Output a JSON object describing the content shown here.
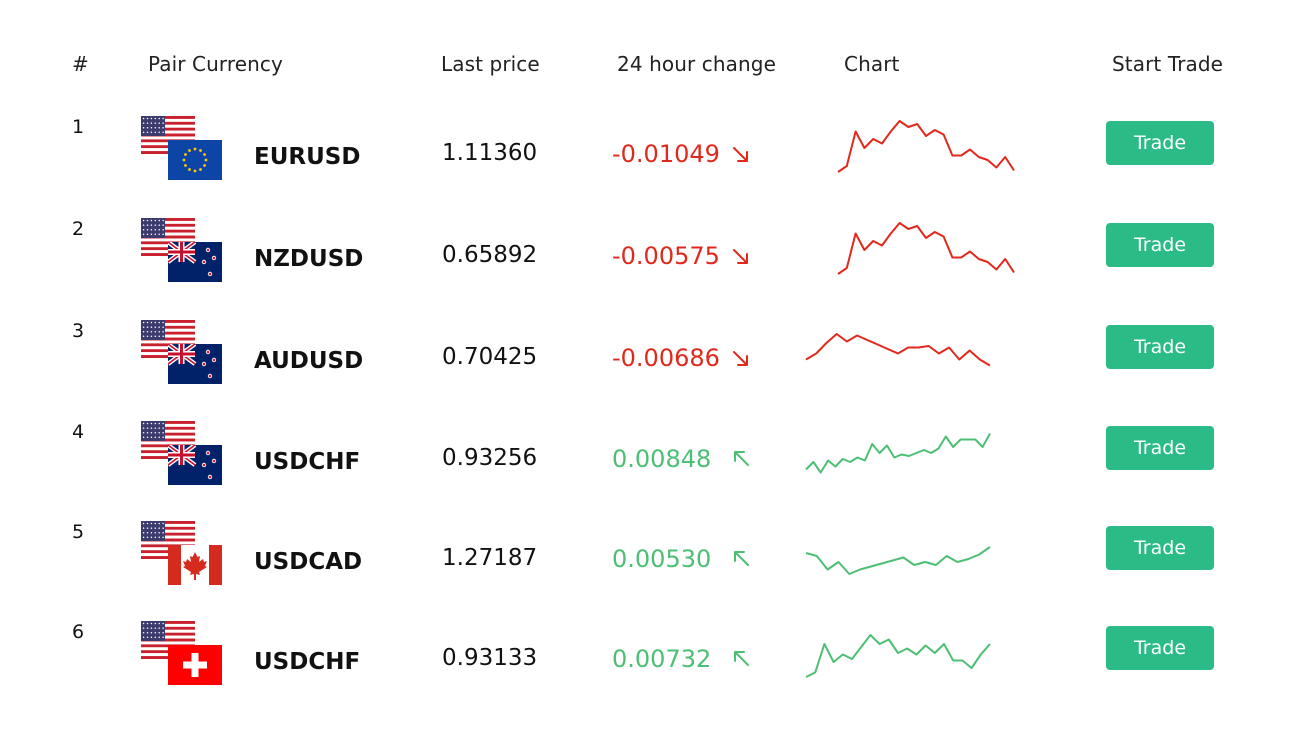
{
  "headers": {
    "num": "#",
    "pair": "Pair Currency",
    "price": "Last price",
    "change": "24 hour change",
    "chart": "Chart",
    "trade": "Start Trade"
  },
  "colors": {
    "down": "#e0291c",
    "up": "#4cbf74",
    "button": "#2bbb87"
  },
  "rows": [
    {
      "num": "1",
      "pair": "EURUSD",
      "price": "1.11360",
      "change": "-0.01049",
      "direction": "down",
      "flag_back": "us-flag",
      "flag_front": "eu-flag",
      "trade_label": "Trade",
      "spark": [
        8,
        16,
        62,
        40,
        52,
        46,
        62,
        76,
        68,
        72,
        56,
        64,
        58,
        30,
        30,
        38,
        28,
        24,
        14,
        28,
        10
      ]
    },
    {
      "num": "2",
      "pair": "NZDUSD",
      "price": "0.65892",
      "change": "-0.00575",
      "direction": "down",
      "flag_back": "us-flag",
      "flag_front": "nz-flag",
      "trade_label": "Trade",
      "spark": [
        8,
        16,
        62,
        40,
        52,
        46,
        62,
        76,
        68,
        72,
        56,
        64,
        58,
        30,
        30,
        38,
        28,
        24,
        14,
        28,
        10
      ]
    },
    {
      "num": "3",
      "pair": "AUDUSD",
      "price": "0.70425",
      "change": "-0.00686",
      "direction": "down",
      "flag_back": "us-flag",
      "flag_front": "nz-flag",
      "trade_label": "Trade",
      "spark": [
        30,
        38,
        52,
        64,
        54,
        62,
        56,
        50,
        44,
        38,
        46,
        46,
        48,
        38,
        46,
        30,
        42,
        30,
        22
      ]
    },
    {
      "num": "4",
      "pair": "USDCHF",
      "price": "0.93256",
      "change": "0.00848",
      "direction": "up",
      "flag_back": "us-flag",
      "flag_front": "nz-flag",
      "trade_label": "Trade",
      "spark": [
        18,
        28,
        14,
        30,
        22,
        32,
        28,
        34,
        30,
        52,
        40,
        50,
        34,
        38,
        36,
        40,
        44,
        40,
        46,
        62,
        48,
        58,
        58,
        58,
        48,
        66
      ]
    },
    {
      "num": "5",
      "pair": "USDCAD",
      "price": "1.27187",
      "change": "0.00530",
      "direction": "up",
      "flag_back": "us-flag",
      "flag_front": "ca-flag",
      "trade_label": "Trade",
      "spark": [
        40,
        36,
        18,
        28,
        12,
        18,
        22,
        26,
        30,
        34,
        24,
        28,
        24,
        36,
        28,
        32,
        38,
        48
      ]
    },
    {
      "num": "6",
      "pair": "USDCHF",
      "price": "0.93133",
      "change": "0.00732",
      "direction": "up",
      "flag_back": "us-flag",
      "flag_front": "ch-flag",
      "trade_label": "Trade",
      "spark": [
        8,
        14,
        52,
        28,
        38,
        32,
        48,
        64,
        52,
        58,
        40,
        46,
        38,
        50,
        40,
        52,
        30,
        30,
        20,
        38,
        52
      ]
    }
  ]
}
